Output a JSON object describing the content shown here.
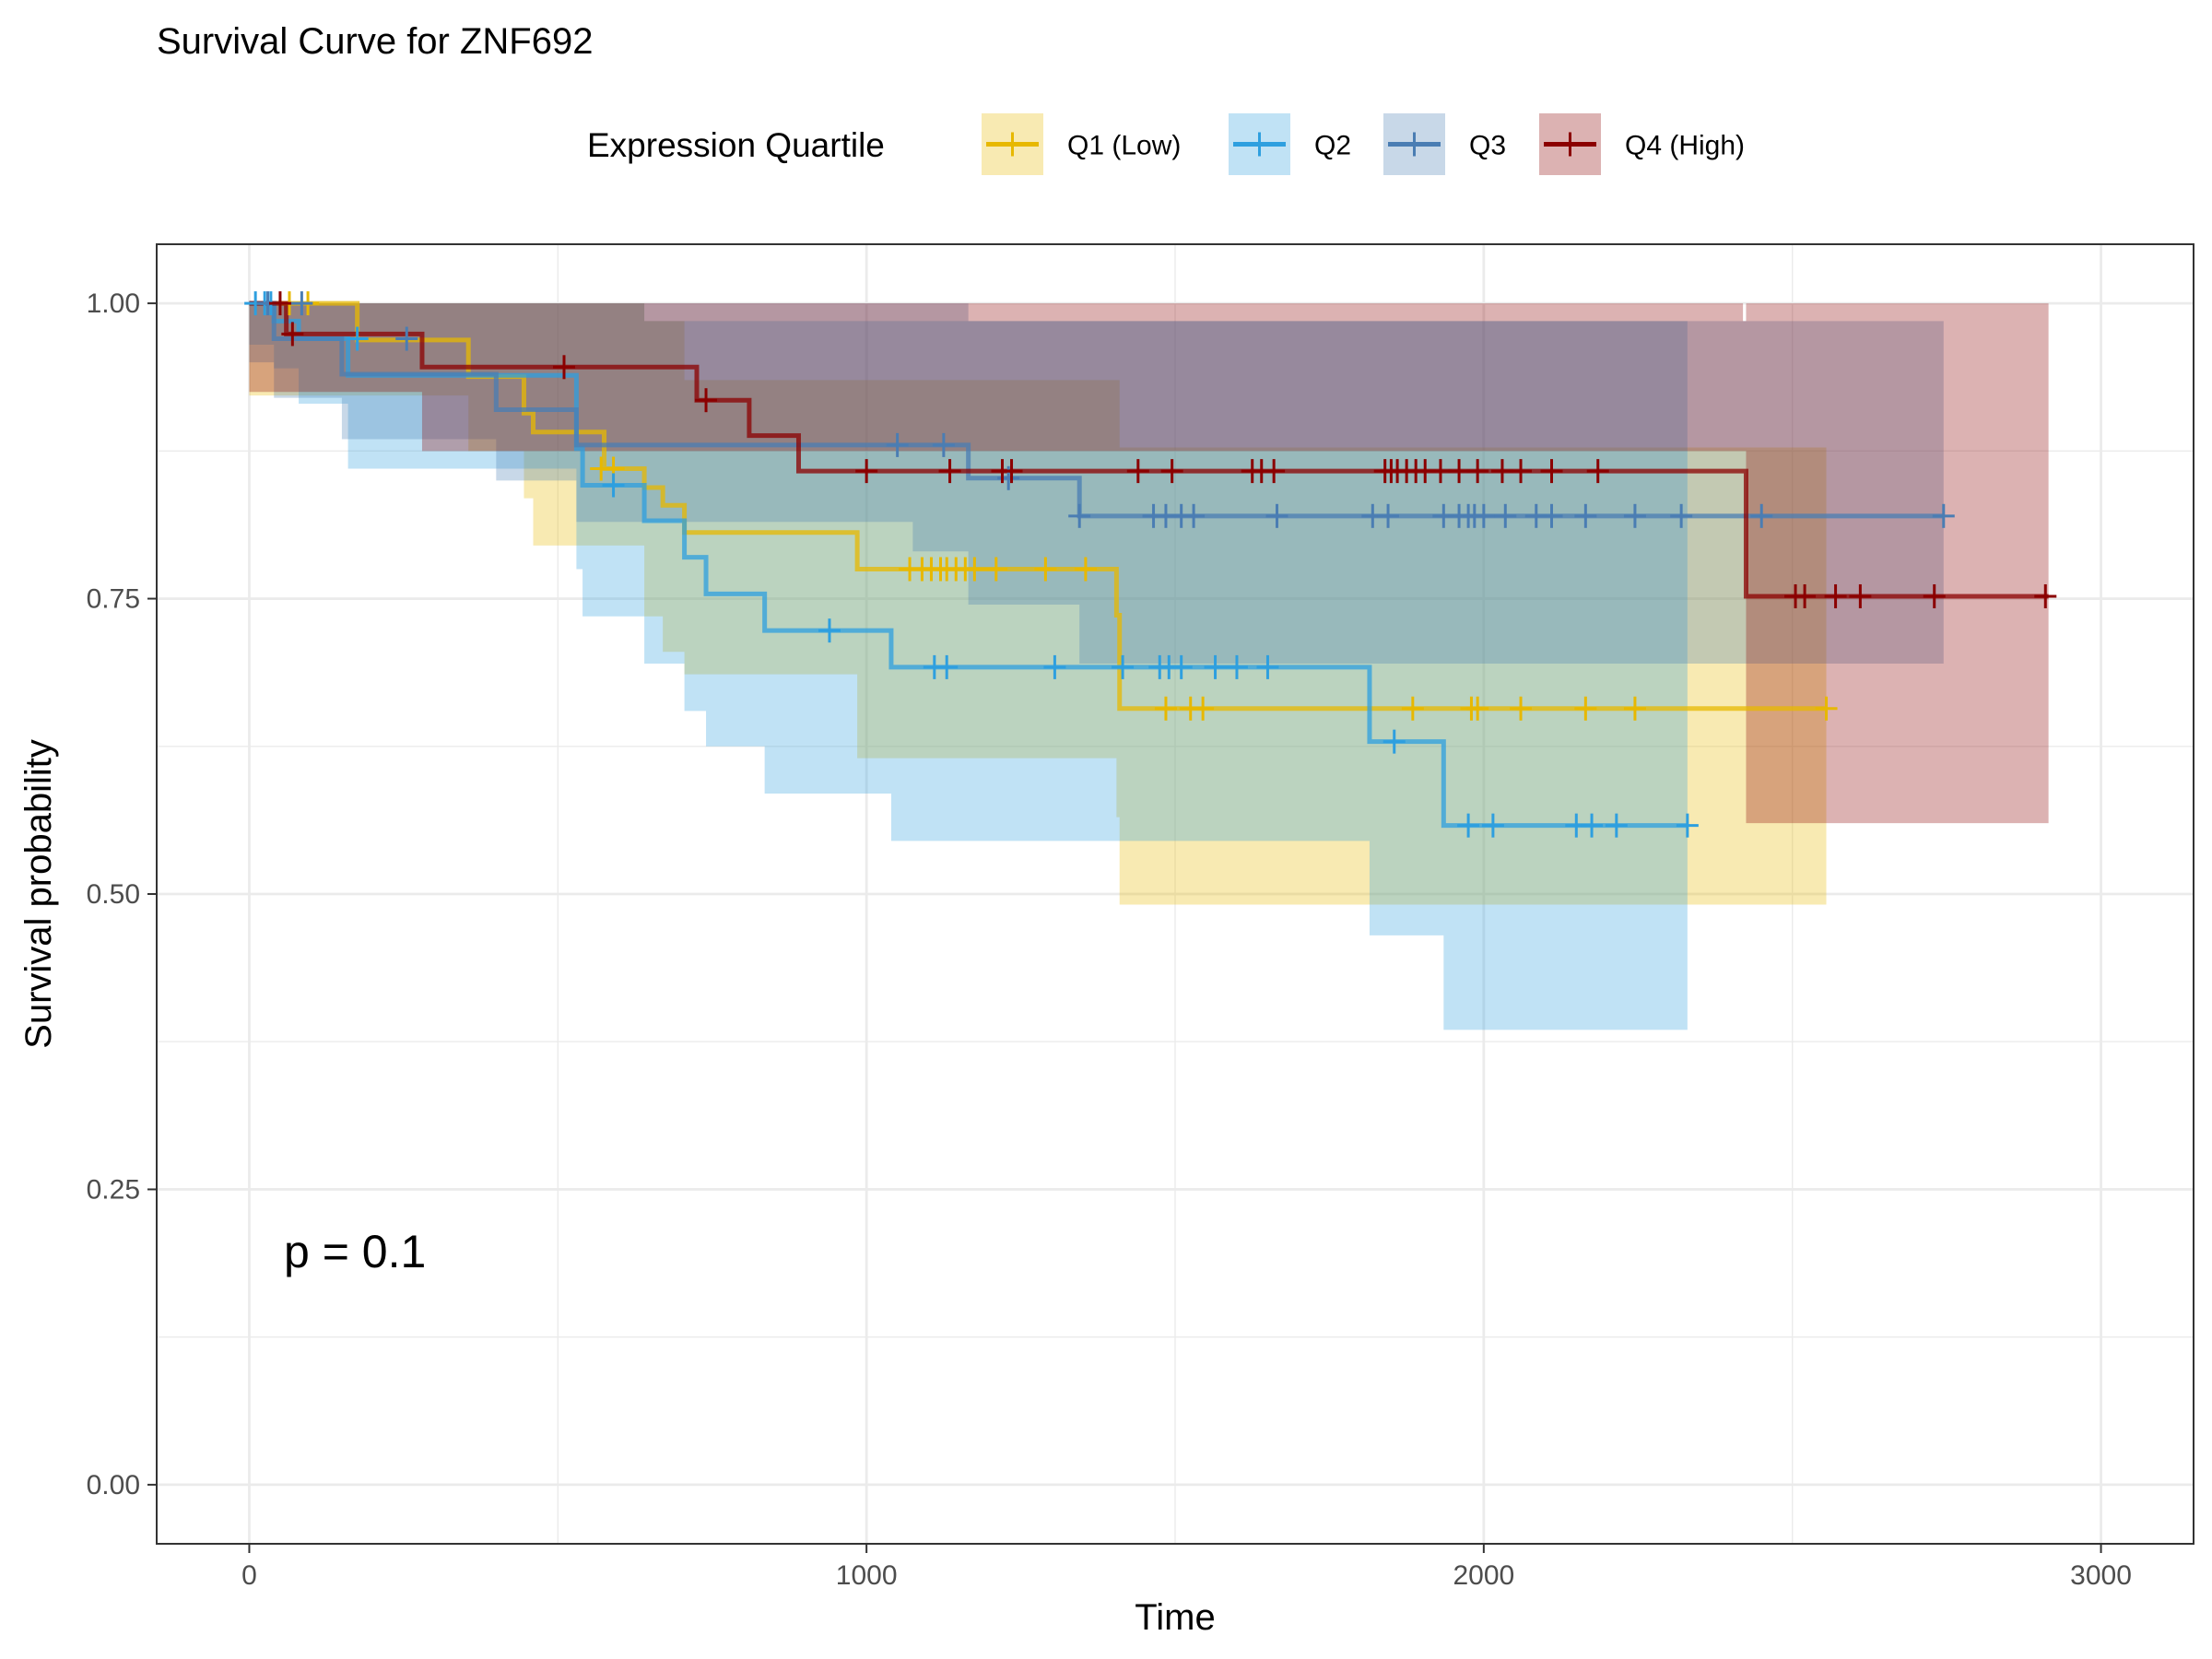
{
  "chart_data": {
    "type": "line",
    "title": "Survival Curve for ZNF692",
    "xlabel": "Time",
    "ylabel": "Survival probability",
    "xlim": [
      -150,
      3150
    ],
    "ylim": [
      -0.05,
      1.05
    ],
    "x_ticks": [
      0,
      1000,
      2000,
      3000
    ],
    "x_tick_labels": [
      "0",
      "1000",
      "2000",
      "3000"
    ],
    "y_ticks": [
      0,
      0.25,
      0.5,
      0.75,
      1
    ],
    "y_tick_labels": [
      "0.00",
      "0.25",
      "0.50",
      "0.75",
      "1.00"
    ],
    "grid": true,
    "legend": {
      "title": "Expression Quartile",
      "position": "top",
      "labels": [
        "Q1 (Low)",
        "Q2",
        "Q3",
        "Q4 (High)"
      ]
    },
    "annotation": "p = 0.1",
    "series": [
      {
        "name": "Q1 (Low)",
        "color": "#E7B800",
        "steps": [
          [
            0,
            1.0
          ],
          [
            175,
            0.969
          ],
          [
            355,
            0.938
          ],
          [
            445,
            0.907
          ],
          [
            460,
            0.891
          ],
          [
            575,
            0.86
          ],
          [
            640,
            0.844
          ],
          [
            670,
            0.829
          ],
          [
            705,
            0.806
          ],
          [
            985,
            0.775
          ],
          [
            1405,
            0.736
          ],
          [
            1410,
            0.657
          ],
          [
            2555,
            0.657
          ]
        ],
        "upper": [
          [
            0,
            1.0
          ],
          [
            175,
            1.0
          ],
          [
            355,
            1.0
          ],
          [
            445,
            1.0
          ],
          [
            460,
            1.0
          ],
          [
            575,
            1.0
          ],
          [
            640,
            0.985
          ],
          [
            670,
            0.985
          ],
          [
            705,
            0.935
          ],
          [
            985,
            0.935
          ],
          [
            1405,
            0.935
          ],
          [
            1410,
            0.878
          ],
          [
            2555,
            0.878
          ]
        ],
        "lower": [
          [
            0,
            0.922
          ],
          [
            175,
            0.922
          ],
          [
            355,
            0.875
          ],
          [
            445,
            0.835
          ],
          [
            460,
            0.795
          ],
          [
            575,
            0.795
          ],
          [
            640,
            0.735
          ],
          [
            670,
            0.705
          ],
          [
            705,
            0.686
          ],
          [
            985,
            0.615
          ],
          [
            1405,
            0.565
          ],
          [
            1410,
            0.491
          ],
          [
            2555,
            0.491
          ]
        ],
        "censors": [
          [
            65,
            1.0
          ],
          [
            95,
            1.0
          ],
          [
            570,
            0.86
          ],
          [
            590,
            0.86
          ],
          [
            1070,
            0.775
          ],
          [
            1090,
            0.775
          ],
          [
            1105,
            0.775
          ],
          [
            1120,
            0.775
          ],
          [
            1130,
            0.775
          ],
          [
            1145,
            0.775
          ],
          [
            1160,
            0.775
          ],
          [
            1175,
            0.775
          ],
          [
            1210,
            0.775
          ],
          [
            1290,
            0.775
          ],
          [
            1355,
            0.775
          ],
          [
            1485,
            0.657
          ],
          [
            1525,
            0.657
          ],
          [
            1545,
            0.657
          ],
          [
            1885,
            0.657
          ],
          [
            1980,
            0.657
          ],
          [
            1990,
            0.657
          ],
          [
            2060,
            0.657
          ],
          [
            2165,
            0.657
          ],
          [
            2245,
            0.657
          ],
          [
            2555,
            0.657
          ]
        ]
      },
      {
        "name": "Q2",
        "color": "#2E9FDF",
        "steps": [
          [
            0,
            1.0
          ],
          [
            40,
            0.985
          ],
          [
            80,
            0.97
          ],
          [
            160,
            0.939
          ],
          [
            530,
            0.877
          ],
          [
            540,
            0.846
          ],
          [
            640,
            0.816
          ],
          [
            705,
            0.785
          ],
          [
            740,
            0.754
          ],
          [
            835,
            0.723
          ],
          [
            1040,
            0.692
          ],
          [
            1815,
            0.629
          ],
          [
            1935,
            0.558
          ],
          [
            2330,
            0.558
          ]
        ],
        "upper": [
          [
            0,
            1.0
          ],
          [
            40,
            1.0
          ],
          [
            80,
            1.0
          ],
          [
            160,
            1.0
          ],
          [
            530,
            1.0
          ],
          [
            540,
            1.0
          ],
          [
            640,
            0.985
          ],
          [
            705,
            0.985
          ],
          [
            740,
            0.985
          ],
          [
            835,
            0.985
          ],
          [
            1040,
            0.985
          ],
          [
            1815,
            0.985
          ],
          [
            1935,
            0.985
          ],
          [
            2330,
            0.985
          ]
        ],
        "lower": [
          [
            0,
            0.965
          ],
          [
            40,
            0.945
          ],
          [
            80,
            0.915
          ],
          [
            160,
            0.86
          ],
          [
            530,
            0.775
          ],
          [
            540,
            0.735
          ],
          [
            640,
            0.695
          ],
          [
            705,
            0.655
          ],
          [
            740,
            0.625
          ],
          [
            835,
            0.585
          ],
          [
            1040,
            0.545
          ],
          [
            1815,
            0.465
          ],
          [
            1935,
            0.385
          ],
          [
            2330,
            0.385
          ]
        ],
        "censors": [
          [
            10,
            1.0
          ],
          [
            25,
            1.0
          ],
          [
            35,
            1.0
          ],
          [
            175,
            0.97
          ],
          [
            590,
            0.846
          ],
          [
            940,
            0.723
          ],
          [
            1110,
            0.692
          ],
          [
            1130,
            0.692
          ],
          [
            1305,
            0.692
          ],
          [
            1415,
            0.692
          ],
          [
            1475,
            0.692
          ],
          [
            1490,
            0.692
          ],
          [
            1510,
            0.692
          ],
          [
            1565,
            0.692
          ],
          [
            1600,
            0.692
          ],
          [
            1650,
            0.692
          ],
          [
            1855,
            0.629
          ],
          [
            1975,
            0.558
          ],
          [
            2015,
            0.558
          ],
          [
            2150,
            0.558
          ],
          [
            2175,
            0.558
          ],
          [
            2215,
            0.558
          ],
          [
            2330,
            0.558
          ]
        ]
      },
      {
        "name": "Q3",
        "color": "#4A7DB3",
        "steps": [
          [
            0,
            1.0
          ],
          [
            40,
            0.97
          ],
          [
            150,
            0.94
          ],
          [
            400,
            0.91
          ],
          [
            530,
            0.88
          ],
          [
            1075,
            0.88
          ],
          [
            1165,
            0.852
          ],
          [
            1345,
            0.82
          ],
          [
            2745,
            0.82
          ]
        ],
        "upper": [
          [
            0,
            1.0
          ],
          [
            40,
            1.0
          ],
          [
            150,
            1.0
          ],
          [
            400,
            1.0
          ],
          [
            530,
            1.0
          ],
          [
            1075,
            1.0
          ],
          [
            1165,
            0.985
          ],
          [
            1345,
            0.985
          ],
          [
            2745,
            0.96
          ]
        ],
        "lower": [
          [
            0,
            0.95
          ],
          [
            40,
            0.92
          ],
          [
            150,
            0.885
          ],
          [
            400,
            0.85
          ],
          [
            530,
            0.815
          ],
          [
            1075,
            0.79
          ],
          [
            1165,
            0.745
          ],
          [
            1345,
            0.695
          ],
          [
            2745,
            0.695
          ]
        ],
        "censors": [
          [
            30,
            1.0
          ],
          [
            85,
            1.0
          ],
          [
            255,
            0.97
          ],
          [
            1050,
            0.88
          ],
          [
            1125,
            0.88
          ],
          [
            1230,
            0.852
          ],
          [
            1345,
            0.82
          ],
          [
            1465,
            0.82
          ],
          [
            1485,
            0.82
          ],
          [
            1510,
            0.82
          ],
          [
            1530,
            0.82
          ],
          [
            1665,
            0.82
          ],
          [
            1820,
            0.82
          ],
          [
            1845,
            0.82
          ],
          [
            1935,
            0.82
          ],
          [
            1960,
            0.82
          ],
          [
            1975,
            0.82
          ],
          [
            1985,
            0.82
          ],
          [
            2000,
            0.82
          ],
          [
            2035,
            0.82
          ],
          [
            2085,
            0.82
          ],
          [
            2110,
            0.82
          ],
          [
            2165,
            0.82
          ],
          [
            2245,
            0.82
          ],
          [
            2320,
            0.82
          ],
          [
            2450,
            0.82
          ],
          [
            2745,
            0.82
          ]
        ]
      },
      {
        "name": "Q4 (High)",
        "color": "#8B0000",
        "steps": [
          [
            0,
            1.0
          ],
          [
            60,
            0.974
          ],
          [
            280,
            0.946
          ],
          [
            725,
            0.918
          ],
          [
            810,
            0.888
          ],
          [
            890,
            0.858
          ],
          [
            2420,
            0.858
          ],
          [
            2425,
            0.752
          ],
          [
            2915,
            0.752
          ]
        ],
        "upper": [
          [
            0,
            1.0
          ],
          [
            60,
            1.0
          ],
          [
            280,
            1.0
          ],
          [
            725,
            1.0
          ],
          [
            810,
            1.0
          ],
          [
            890,
            1.0
          ],
          [
            2420,
            0.985
          ],
          [
            2425,
            1.0
          ],
          [
            2915,
            1.0
          ]
        ],
        "lower": [
          [
            0,
            0.925
          ],
          [
            60,
            0.925
          ],
          [
            280,
            0.875
          ],
          [
            725,
            0.875
          ],
          [
            810,
            0.875
          ],
          [
            890,
            0.875
          ],
          [
            2420,
            0.875
          ],
          [
            2425,
            0.56
          ],
          [
            2915,
            0.56
          ]
        ],
        "censors": [
          [
            50,
            1.0
          ],
          [
            70,
            0.974
          ],
          [
            510,
            0.946
          ],
          [
            740,
            0.918
          ],
          [
            1000,
            0.858
          ],
          [
            1135,
            0.858
          ],
          [
            1220,
            0.858
          ],
          [
            1235,
            0.858
          ],
          [
            1440,
            0.858
          ],
          [
            1495,
            0.858
          ],
          [
            1625,
            0.858
          ],
          [
            1640,
            0.858
          ],
          [
            1660,
            0.858
          ],
          [
            1840,
            0.858
          ],
          [
            1850,
            0.858
          ],
          [
            1860,
            0.858
          ],
          [
            1875,
            0.858
          ],
          [
            1890,
            0.858
          ],
          [
            1905,
            0.858
          ],
          [
            1930,
            0.858
          ],
          [
            1960,
            0.858
          ],
          [
            1990,
            0.858
          ],
          [
            2030,
            0.858
          ],
          [
            2060,
            0.858
          ],
          [
            2110,
            0.858
          ],
          [
            2185,
            0.858
          ],
          [
            2505,
            0.752
          ],
          [
            2520,
            0.752
          ],
          [
            2570,
            0.752
          ],
          [
            2610,
            0.752
          ],
          [
            2730,
            0.752
          ],
          [
            2910,
            0.752
          ]
        ]
      }
    ]
  }
}
